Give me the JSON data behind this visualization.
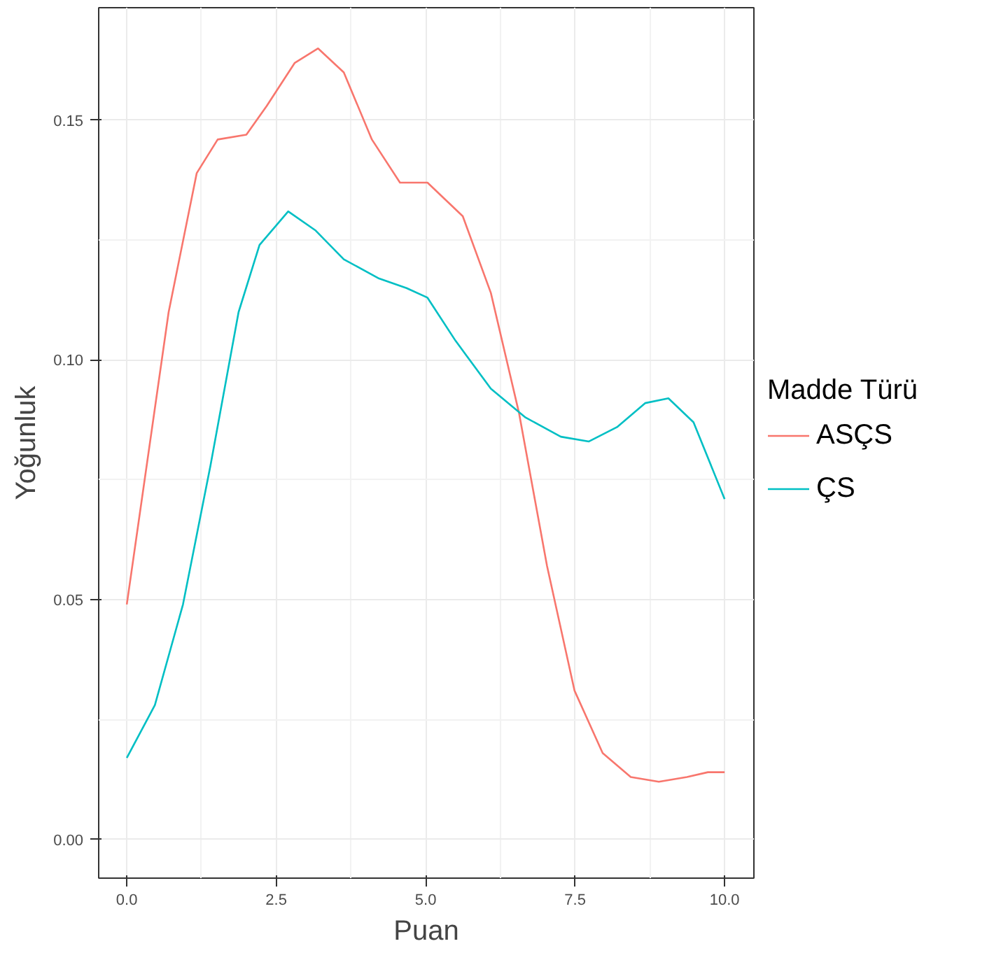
{
  "chart_data": {
    "type": "line",
    "xlabel": "Puan",
    "ylabel": "Yoğunluk",
    "legend_title": "Madde Türü",
    "legend": "right",
    "grid": true,
    "xlim": [
      -0.47,
      10.49
    ],
    "ylim": [
      -0.0081,
      0.1735
    ],
    "xticks": [
      {
        "value": 0,
        "label": "0.0"
      },
      {
        "value": 2.5,
        "label": "2.5"
      },
      {
        "value": 5,
        "label": "5.0"
      },
      {
        "value": 7.5,
        "label": "7.5"
      },
      {
        "value": 10,
        "label": "10.0"
      }
    ],
    "yticks": [
      {
        "value": 0,
        "label": "0.00"
      },
      {
        "value": 0.05,
        "label": "0.05"
      },
      {
        "value": 0.1,
        "label": "0.10"
      },
      {
        "value": 0.15,
        "label": "0.15"
      }
    ],
    "series": [
      {
        "name": "ASÇS",
        "color": "#f8766d",
        "x": [
          0,
          0.7,
          1.17,
          1.52,
          2.0,
          2.34,
          2.81,
          3.2,
          3.63,
          4.1,
          4.57,
          5.03,
          5.62,
          6.09,
          6.56,
          7.03,
          7.49,
          7.96,
          8.43,
          8.9,
          9.37,
          9.72,
          10
        ],
        "values": [
          0.049,
          0.11,
          0.139,
          0.146,
          0.147,
          0.153,
          0.162,
          0.165,
          0.16,
          0.146,
          0.137,
          0.137,
          0.13,
          0.114,
          0.089,
          0.057,
          0.031,
          0.018,
          0.013,
          0.012,
          0.013,
          0.014,
          0.014
        ]
      },
      {
        "name": "ÇS",
        "color": "#00bfc4",
        "x": [
          0,
          0.47,
          0.94,
          1.4,
          1.87,
          2.22,
          2.7,
          3.16,
          3.63,
          4.22,
          4.68,
          5.03,
          5.5,
          6.09,
          6.67,
          7.26,
          7.73,
          8.2,
          8.67,
          9.06,
          9.48,
          10
        ],
        "values": [
          0.017,
          0.028,
          0.049,
          0.078,
          0.11,
          0.124,
          0.131,
          0.127,
          0.121,
          0.117,
          0.115,
          0.113,
          0.104,
          0.094,
          0.088,
          0.084,
          0.083,
          0.086,
          0.091,
          0.092,
          0.087,
          0.071
        ]
      }
    ]
  }
}
